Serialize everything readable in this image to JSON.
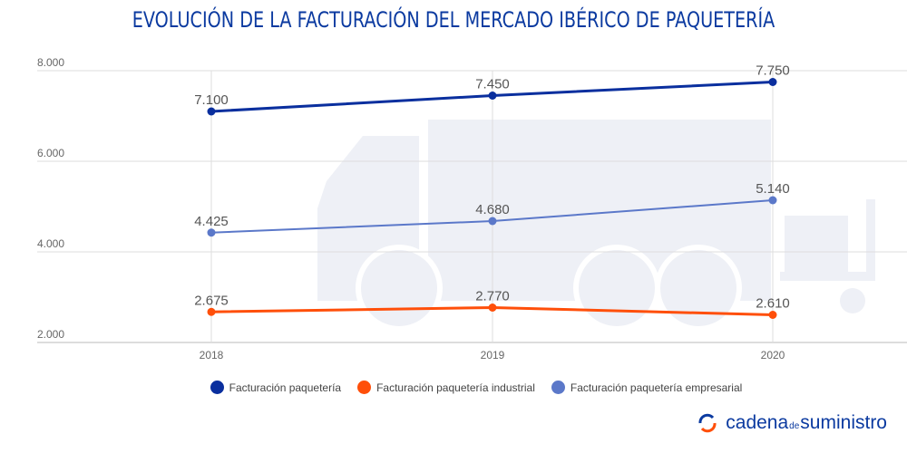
{
  "title": "EVOLUCIÓN DE LA FACTURACIÓN DEL MERCADO IBÉRICO DE PAQUETERÍA",
  "chart_data": {
    "type": "line",
    "title": "EVOLUCIÓN DE LA FACTURACIÓN DEL MERCADO IBÉRICO DE PAQUETERÍA",
    "x": [
      "2018",
      "2019",
      "2020"
    ],
    "ylim": [
      2000,
      8000
    ],
    "yticks": [
      "2.000",
      "4.000",
      "6.000",
      "8.000"
    ],
    "grid": true,
    "legend_position": "bottom",
    "series": [
      {
        "name": "Facturación paquetería",
        "color": "#0a2f9e",
        "values": [
          7100,
          7450,
          7750
        ],
        "labels": [
          "7.100",
          "7.450",
          "7.750"
        ]
      },
      {
        "name": "Facturación paquetería industrial",
        "color": "#ff4f0a",
        "values": [
          2675,
          2770,
          2610
        ],
        "labels": [
          "2.675",
          "2.770",
          "2.610"
        ]
      },
      {
        "name": "Facturación paquetería empresarial",
        "color": "#5b78c9",
        "values": [
          4425,
          4680,
          5140
        ],
        "labels": [
          "4.425",
          "4.680",
          "5.140"
        ]
      }
    ]
  },
  "logo": {
    "part1": "cadena",
    "part2": "de",
    "part3": "suministro"
  }
}
